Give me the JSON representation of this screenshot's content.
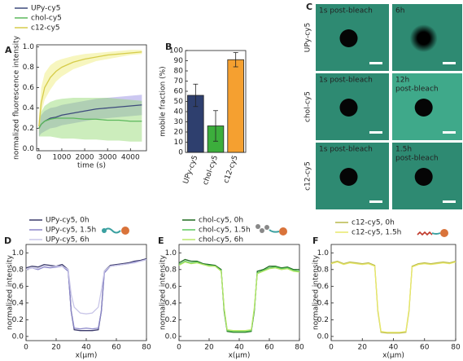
{
  "chart_data": [
    {
      "type": "line",
      "panel": "A",
      "xlabel": "time (s)",
      "ylabel": "normalized fluorescence intensity",
      "x": [
        0,
        100,
        250,
        500,
        750,
        1000,
        1500,
        2000,
        2500,
        3000,
        3500,
        4000,
        4500
      ],
      "xlim": [
        -100,
        4700
      ],
      "ylim": [
        -0.02,
        1.02
      ],
      "xticks": [
        0,
        1000,
        2000,
        3000,
        4000
      ],
      "yticks": [
        {
          "value": 0,
          "label": "0.0"
        },
        {
          "value": 0.2,
          "label": "0.2"
        },
        {
          "value": 0.4,
          "label": "0.4"
        },
        {
          "value": 0.6,
          "label": "0.6"
        },
        {
          "value": 0.8,
          "label": "0.8"
        },
        {
          "value": 1,
          "label": "1.0"
        }
      ],
      "series": [
        {
          "name": "UPy-cy5",
          "color": "#3d4a7c",
          "band_color": "#8f86e0",
          "values": [
            0.2,
            0.24,
            0.27,
            0.3,
            0.31,
            0.33,
            0.35,
            0.37,
            0.39,
            0.4,
            0.41,
            0.42,
            0.43
          ],
          "lower": [
            0.12,
            0.15,
            0.17,
            0.2,
            0.21,
            0.23,
            0.25,
            0.27,
            0.29,
            0.3,
            0.31,
            0.32,
            0.33
          ],
          "upper": [
            0.28,
            0.33,
            0.37,
            0.4,
            0.41,
            0.43,
            0.45,
            0.47,
            0.49,
            0.5,
            0.51,
            0.52,
            0.53
          ]
        },
        {
          "name": "chol-cy5",
          "color": "#5cb85c",
          "band_color": "#8fd86a",
          "values": [
            0.2,
            0.24,
            0.27,
            0.29,
            0.3,
            0.3,
            0.3,
            0.29,
            0.29,
            0.28,
            0.28,
            0.27,
            0.27
          ],
          "lower": [
            0.12,
            0.12,
            0.12,
            0.12,
            0.11,
            0.1,
            0.1,
            0.09,
            0.09,
            0.08,
            0.08,
            0.07,
            0.07
          ],
          "upper": [
            0.28,
            0.36,
            0.42,
            0.46,
            0.48,
            0.49,
            0.5,
            0.5,
            0.5,
            0.5,
            0.49,
            0.48,
            0.47
          ]
        },
        {
          "name": "c12-cy5",
          "color": "#d6cc4a",
          "band_color": "#eeea70",
          "values": [
            0.22,
            0.45,
            0.6,
            0.7,
            0.76,
            0.8,
            0.85,
            0.88,
            0.9,
            0.92,
            0.93,
            0.94,
            0.95
          ],
          "lower": [
            0.15,
            0.35,
            0.48,
            0.58,
            0.66,
            0.71,
            0.78,
            0.82,
            0.86,
            0.88,
            0.9,
            0.92,
            0.93
          ],
          "upper": [
            0.3,
            0.6,
            0.74,
            0.82,
            0.86,
            0.88,
            0.91,
            0.93,
            0.94,
            0.95,
            0.96,
            0.97,
            0.97
          ]
        }
      ]
    },
    {
      "type": "bar",
      "panel": "B",
      "ylabel": "mobile fraction (%)",
      "categories": [
        "UPy-cy5",
        "chol-cy5",
        "c12-cy5"
      ],
      "values": [
        56,
        26,
        91
      ],
      "errors": [
        11,
        15,
        7
      ],
      "colors": [
        "#2e3f6e",
        "#3cae3c",
        "#f5a030"
      ],
      "label_colors": [
        "#2e3f6e",
        "#2f8f2f",
        "#c9781a"
      ],
      "ylim": [
        0,
        100
      ],
      "yticks": [
        0,
        10,
        20,
        30,
        40,
        50,
        60,
        70,
        80,
        90,
        100
      ]
    },
    {
      "type": "line",
      "panel": "D",
      "xlabel": "x(μm)",
      "ylabel": "normalized intensity",
      "x": [
        0,
        4,
        8,
        12,
        16,
        20,
        24,
        28,
        30,
        32,
        36,
        40,
        44,
        48,
        50,
        52,
        56,
        60,
        64,
        68,
        72,
        76,
        80
      ],
      "xlim": [
        0,
        80
      ],
      "ylim": [
        -0.05,
        1.1
      ],
      "xticks": [
        0,
        20,
        40,
        60,
        80
      ],
      "yticks": [
        {
          "value": 0,
          "label": "0.0"
        },
        {
          "value": 0.2,
          "label": "0.2"
        },
        {
          "value": 0.4,
          "label": "0.4"
        },
        {
          "value": 0.6,
          "label": "0.6"
        },
        {
          "value": 0.8,
          "label": "0.8"
        },
        {
          "value": 1,
          "label": "1.0"
        }
      ],
      "series": [
        {
          "name": "UPy-cy5, 0h",
          "color": "#3b3a6b",
          "values": [
            0.82,
            0.84,
            0.83,
            0.86,
            0.85,
            0.84,
            0.86,
            0.8,
            0.3,
            0.08,
            0.07,
            0.07,
            0.07,
            0.08,
            0.3,
            0.78,
            0.85,
            0.86,
            0.87,
            0.88,
            0.9,
            0.91,
            0.93
          ]
        },
        {
          "name": "UPy-cy5, 1.5h",
          "color": "#8a86c8",
          "values": [
            0.8,
            0.82,
            0.8,
            0.83,
            0.82,
            0.83,
            0.84,
            0.78,
            0.3,
            0.1,
            0.09,
            0.1,
            0.09,
            0.1,
            0.3,
            0.76,
            0.84,
            0.85,
            0.86,
            0.87,
            0.89,
            0.9,
            0.92
          ]
        },
        {
          "name": "UPy-cy5, 6h",
          "color": "#c9c6e8",
          "values": [
            0.8,
            0.82,
            0.81,
            0.84,
            0.83,
            0.84,
            0.84,
            0.8,
            0.5,
            0.35,
            0.28,
            0.27,
            0.28,
            0.35,
            0.55,
            0.78,
            0.84,
            0.85,
            0.86,
            0.87,
            0.88,
            0.9,
            0.92
          ]
        }
      ]
    },
    {
      "type": "line",
      "panel": "E",
      "xlabel": "x(μm)",
      "ylabel": "normalized intensity",
      "x": [
        0,
        4,
        8,
        12,
        16,
        20,
        24,
        28,
        30,
        32,
        36,
        40,
        44,
        48,
        50,
        52,
        56,
        60,
        64,
        68,
        72,
        76,
        80
      ],
      "xlim": [
        0,
        80
      ],
      "ylim": [
        -0.05,
        1.1
      ],
      "xticks": [
        0,
        20,
        40,
        60,
        80
      ],
      "yticks": [
        {
          "value": 0,
          "label": "0.0"
        },
        {
          "value": 0.2,
          "label": "0.2"
        },
        {
          "value": 0.4,
          "label": "0.4"
        },
        {
          "value": 0.6,
          "label": "0.6"
        },
        {
          "value": 0.8,
          "label": "0.8"
        },
        {
          "value": 1,
          "label": "1.0"
        }
      ],
      "series": [
        {
          "name": "chol-cy5, 0h",
          "color": "#1f6b1f",
          "values": [
            0.88,
            0.92,
            0.9,
            0.9,
            0.87,
            0.86,
            0.85,
            0.8,
            0.3,
            0.06,
            0.05,
            0.05,
            0.05,
            0.06,
            0.3,
            0.78,
            0.8,
            0.84,
            0.84,
            0.82,
            0.83,
            0.8,
            0.8
          ]
        },
        {
          "name": "chol-cy5, 1.5h",
          "color": "#5cc85c",
          "values": [
            0.86,
            0.9,
            0.88,
            0.89,
            0.86,
            0.85,
            0.84,
            0.79,
            0.32,
            0.07,
            0.06,
            0.06,
            0.06,
            0.07,
            0.32,
            0.76,
            0.79,
            0.82,
            0.83,
            0.81,
            0.82,
            0.79,
            0.78
          ]
        },
        {
          "name": "chol-cy5, 6h",
          "color": "#b8e86a",
          "values": [
            0.85,
            0.89,
            0.87,
            0.88,
            0.86,
            0.84,
            0.84,
            0.78,
            0.34,
            0.08,
            0.07,
            0.07,
            0.07,
            0.08,
            0.34,
            0.75,
            0.78,
            0.81,
            0.82,
            0.8,
            0.81,
            0.78,
            0.77
          ]
        }
      ]
    },
    {
      "type": "line",
      "panel": "F",
      "xlabel": "x(μm)",
      "ylabel": "normalized intensity",
      "x": [
        0,
        4,
        8,
        12,
        16,
        20,
        24,
        28,
        30,
        32,
        36,
        40,
        44,
        48,
        50,
        52,
        56,
        60,
        64,
        68,
        72,
        76,
        80
      ],
      "xlim": [
        0,
        80
      ],
      "ylim": [
        -0.05,
        1.1
      ],
      "xticks": [
        0,
        20,
        40,
        60,
        80
      ],
      "yticks": [
        {
          "value": 0,
          "label": "0.0"
        },
        {
          "value": 0.2,
          "label": "0.2"
        },
        {
          "value": 0.4,
          "label": "0.4"
        },
        {
          "value": 0.6,
          "label": "0.6"
        },
        {
          "value": 0.8,
          "label": "0.8"
        },
        {
          "value": 1,
          "label": "1.0"
        }
      ],
      "series": [
        {
          "name": "c12-cy5, 0h",
          "color": "#b8b84a",
          "values": [
            0.88,
            0.9,
            0.87,
            0.89,
            0.88,
            0.87,
            0.88,
            0.85,
            0.3,
            0.05,
            0.04,
            0.04,
            0.04,
            0.05,
            0.3,
            0.84,
            0.87,
            0.88,
            0.87,
            0.88,
            0.89,
            0.88,
            0.9
          ]
        },
        {
          "name": "c12-cy5, 1.5h",
          "color": "#e8e86a",
          "values": [
            0.87,
            0.89,
            0.86,
            0.88,
            0.87,
            0.86,
            0.87,
            0.84,
            0.32,
            0.06,
            0.05,
            0.05,
            0.05,
            0.06,
            0.32,
            0.83,
            0.86,
            0.87,
            0.86,
            0.87,
            0.88,
            0.87,
            0.89
          ]
        }
      ]
    }
  ],
  "image_panel": {
    "panel": "C",
    "row_labels": [
      "UPy-cy5",
      "chol-cy5",
      "c12-cy5"
    ],
    "captions": [
      [
        [
          "1s post-bleach"
        ],
        [
          "6h"
        ]
      ],
      [
        [
          "1s post-bleach"
        ],
        [
          "12h",
          "post-bleach"
        ]
      ],
      [
        [
          "1s post-bleach"
        ],
        [
          "1.5h",
          "post-bleach"
        ]
      ]
    ]
  }
}
